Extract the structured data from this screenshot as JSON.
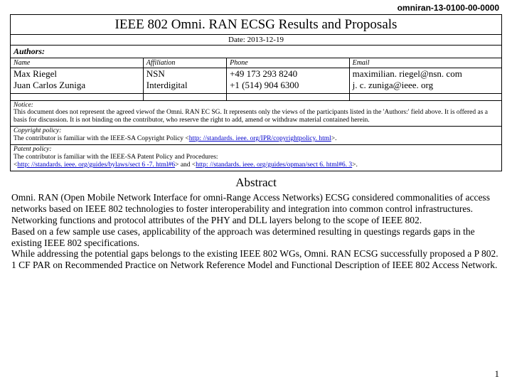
{
  "doc_id": "omniran-13-0100-00-0000",
  "title": "IEEE 802 Omni. RAN ECSG Results and Proposals",
  "date_line": "Date: 2013-12-19",
  "authors_label": "Authors:",
  "author_headers": {
    "name": "Name",
    "affiliation": "Affiliation",
    "phone": "Phone",
    "email": "Email"
  },
  "authors": [
    {
      "name": "Max Riegel",
      "affiliation": "NSN",
      "phone": "+49 173 293 8240",
      "email": "maximilian. riegel@nsn. com"
    },
    {
      "name": "Juan Carlos Zuniga",
      "affiliation": "Interdigital",
      "phone": "+1 (514) 904 6300",
      "email": "j. c. zuniga@ieee. org"
    }
  ],
  "notice": {
    "label": "Notice:",
    "text": "This document does not represent the agreed viewof the Omni. RAN EC SG. It represents only the views of the participants listed in the 'Authors:' field above. It is offered as a basis for discussion. It is not binding on the contributor, who reserve the right to add, amend or withdraw material contained herein."
  },
  "copyright": {
    "label": "Copyright policy:",
    "pre": "The contributor is familiar with the IEEE-SA Copyright Policy <",
    "link": "http: //standards. ieee. org/IPR/copyrightpolicy. html",
    "post": ">."
  },
  "patent": {
    "label": "Patent policy:",
    "line1": "The contributor is familiar with the IEEE-SA Patent Policy and Procedures:",
    "pre1": "<",
    "link1": "http: //standards. ieee. org/guides/bylaws/sect 6 -7. html#6",
    "mid": "> and <",
    "link2": "http: //standards. ieee. org/guides/opman/sect 6. html#6. 3",
    "post": ">."
  },
  "abstract_heading": "Abstract",
  "abstract_body": "Omni. RAN (Open Mobile Network Interface for omni-Range Access Networks) ECSG considered commonalities of access networks based on IEEE 802 technologies to foster interoperability and integration into common control infrastructures. Networking functions and protocol attributes of the PHY and DLL layers belong to the scope of IEEE 802.\nBased on a few sample use cases, applicability of the approach was determined resulting in questings regards gaps in the existing IEEE 802 specifications.\nWhile addressing the potential gaps belongs to the existing IEEE 802 WGs, Omni. RAN ECSG successfully proposed a P 802. 1 CF PAR on Recommended Practice on Network Reference Model and Functional Description of IEEE 802 Access Network.",
  "page_number": "1",
  "colors": {
    "text": "#000000",
    "link": "#0000cc",
    "bg": "#ffffff",
    "border": "#000000"
  }
}
